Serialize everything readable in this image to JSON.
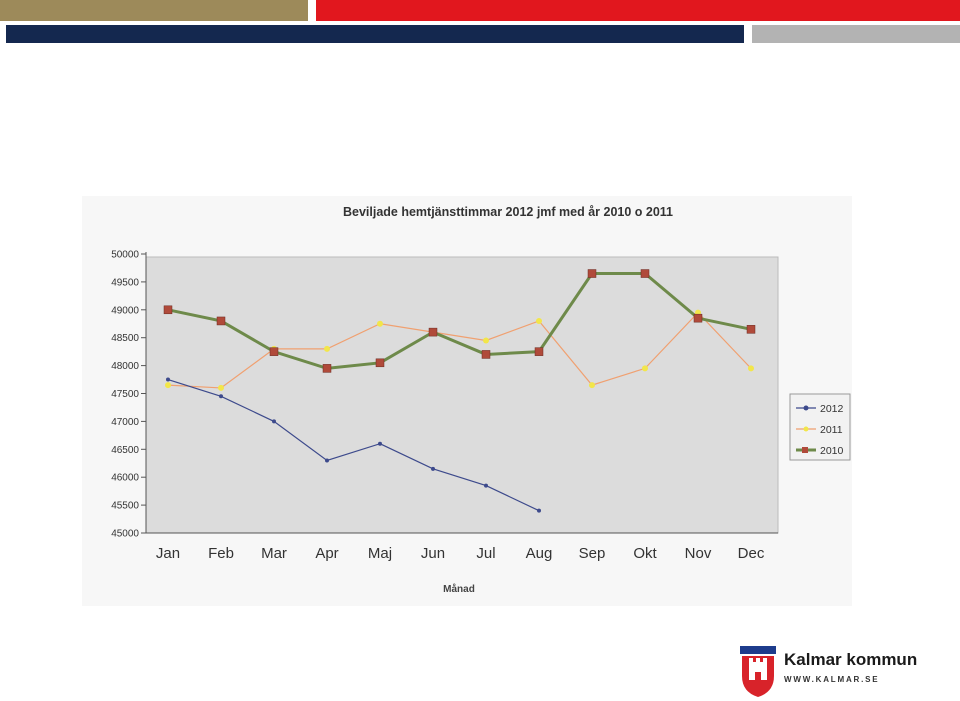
{
  "colors": {
    "gold": "#9d8a5a",
    "red": "#e1171e",
    "navy": "#14284f",
    "grey": "#b3b3b3",
    "plot_bg": "#dcdcdc",
    "series_2012": "#3d4a8c",
    "series_2011": "#f0a070",
    "series_2011_marker": "#f2e64a",
    "series_2010": "#6e8a4a",
    "series_2010_marker": "#b04a3a"
  },
  "logo": {
    "name": "Kalmar kommun",
    "url": "WWW.KALMAR.SE",
    "icon": "kalmar-coat-of-arms-icon"
  },
  "chart_data": {
    "type": "line",
    "title": "Beviljade hemtjänsttimmar 2012 jmf med år 2010 o 2011",
    "xlabel": "Månad",
    "ylabel": "",
    "categories": [
      "Jan",
      "Feb",
      "Mar",
      "Apr",
      "Maj",
      "Jun",
      "Jul",
      "Aug",
      "Sep",
      "Okt",
      "Nov",
      "Dec"
    ],
    "ylim": [
      45000,
      50000
    ],
    "yticks": [
      "45000",
      "45500",
      "46000",
      "46500",
      "47000",
      "47500",
      "48000",
      "48500",
      "49000",
      "49500",
      "50000"
    ],
    "grid": false,
    "legend": "right",
    "series": [
      {
        "name": "2012",
        "values": [
          47750,
          47450,
          47000,
          46300,
          46600,
          46150,
          45850,
          45400,
          null,
          null,
          null,
          null
        ]
      },
      {
        "name": "2011",
        "values": [
          47650,
          47600,
          48300,
          48300,
          48750,
          48600,
          48450,
          48800,
          47650,
          47950,
          48950,
          47950
        ]
      },
      {
        "name": "2010",
        "values": [
          49000,
          48800,
          48250,
          47950,
          48050,
          48600,
          48200,
          48250,
          49650,
          49650,
          48850,
          48650
        ]
      }
    ]
  }
}
